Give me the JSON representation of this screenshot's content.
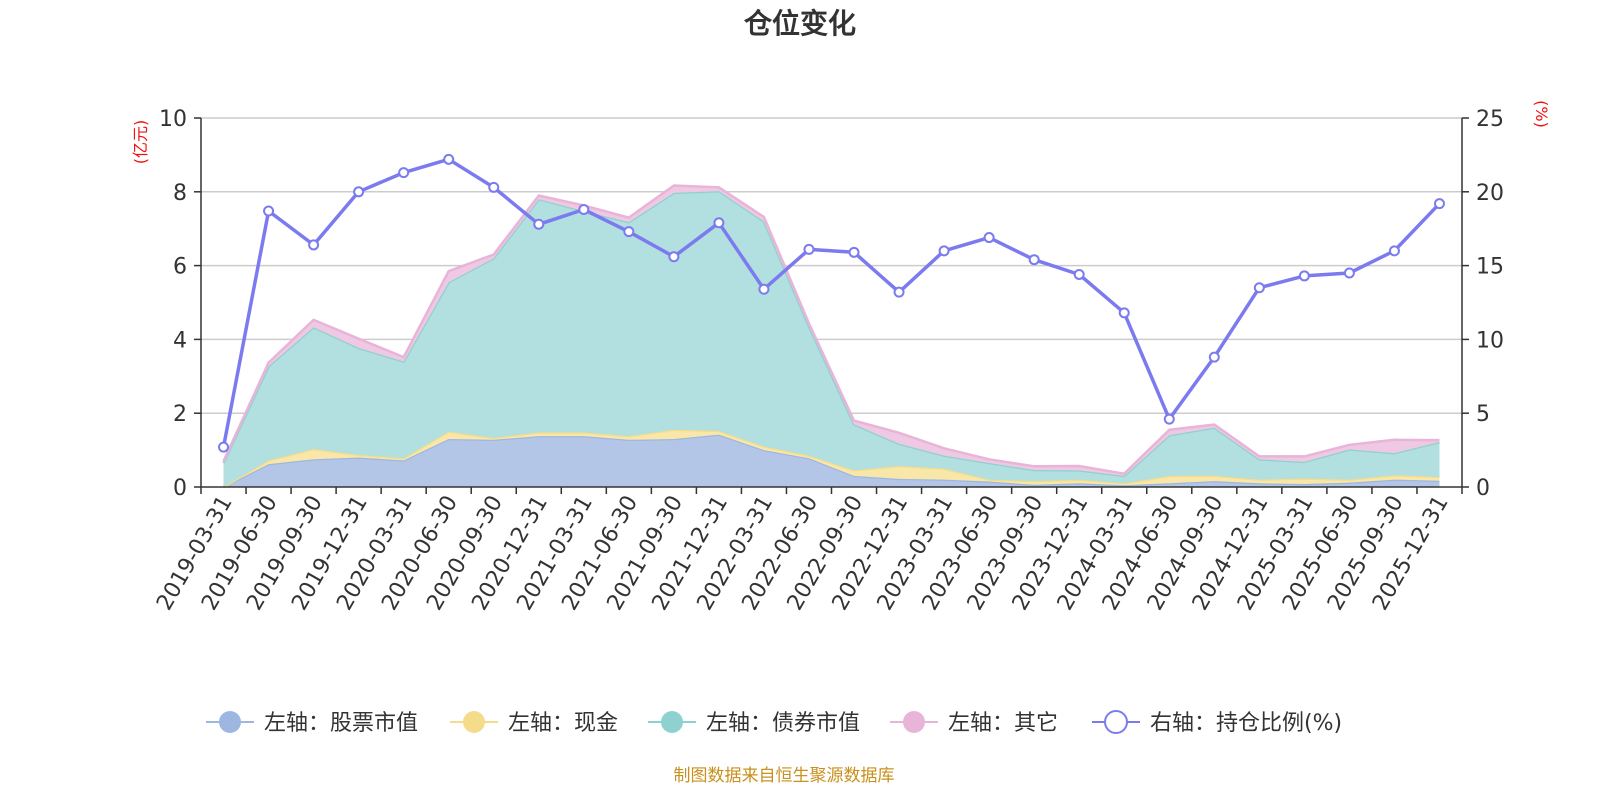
{
  "chart_data": {
    "type": "area+line",
    "title": "仓位变化",
    "left_axis": {
      "unit_label": "(亿元)",
      "ylim": [
        0,
        10
      ],
      "ticks": [
        "0",
        "2",
        "4",
        "6",
        "8",
        "10"
      ]
    },
    "right_axis": {
      "unit_label": "(%)",
      "ylim": [
        0,
        25
      ],
      "ticks": [
        "0",
        "5",
        "10",
        "15",
        "20",
        "25"
      ]
    },
    "categories": [
      "2019-03-31",
      "2019-06-30",
      "2019-09-30",
      "2019-12-31",
      "2020-03-31",
      "2020-06-30",
      "2020-09-30",
      "2020-12-31",
      "2021-03-31",
      "2021-06-30",
      "2021-09-30",
      "2021-12-31",
      "2022-03-31",
      "2022-06-30",
      "2022-09-30",
      "2022-12-31",
      "2023-03-31",
      "2023-06-30",
      "2023-09-30",
      "2023-12-31",
      "2024-03-31",
      "2024-06-30",
      "2024-09-30",
      "2024-12-31",
      "2025-03-31",
      "2025-06-30",
      "2025-09-30",
      "2025-12-31"
    ],
    "stacked_series": [
      {
        "name": "左轴：股票市值",
        "color": "#9eb7e0",
        "fill": "#b3c6e8",
        "values": [
          0.0,
          0.62,
          0.75,
          0.8,
          0.72,
          1.3,
          1.28,
          1.38,
          1.38,
          1.28,
          1.3,
          1.42,
          1.0,
          0.78,
          0.3,
          0.22,
          0.2,
          0.15,
          0.06,
          0.1,
          0.05,
          0.1,
          0.16,
          0.1,
          0.08,
          0.12,
          0.2,
          0.17
        ]
      },
      {
        "name": "左轴：现金",
        "color": "#f5dc8a",
        "fill": "#f8e7a8",
        "values": [
          0.0,
          0.1,
          0.28,
          0.07,
          0.06,
          0.2,
          0.05,
          0.1,
          0.1,
          0.1,
          0.25,
          0.1,
          0.1,
          0.07,
          0.15,
          0.35,
          0.3,
          0.05,
          0.1,
          0.1,
          0.05,
          0.2,
          0.15,
          0.1,
          0.15,
          0.08,
          0.12,
          0.1
        ]
      },
      {
        "name": "左轴：债券市值",
        "color": "#8fd1d0",
        "fill": "#b2dfdf",
        "values": [
          0.65,
          2.55,
          3.3,
          2.9,
          2.62,
          4.05,
          4.87,
          6.32,
          6.0,
          5.8,
          6.42,
          6.5,
          6.1,
          3.5,
          1.25,
          0.6,
          0.35,
          0.45,
          0.3,
          0.25,
          0.2,
          1.1,
          1.3,
          0.55,
          0.45,
          0.82,
          0.6,
          0.95
        ]
      },
      {
        "name": "左轴：其它",
        "color": "#e8b4d8",
        "fill": "#efc9e3",
        "values": [
          0.05,
          0.1,
          0.2,
          0.25,
          0.12,
          0.3,
          0.1,
          0.1,
          0.15,
          0.12,
          0.2,
          0.1,
          0.12,
          0.08,
          0.1,
          0.3,
          0.2,
          0.1,
          0.1,
          0.12,
          0.06,
          0.15,
          0.08,
          0.08,
          0.15,
          0.12,
          0.36,
          0.05
        ]
      }
    ],
    "line_series": {
      "name": "右轴：持仓比例(%)",
      "color": "#7b7bef",
      "values": [
        2.7,
        18.7,
        16.4,
        20.0,
        21.3,
        22.2,
        20.3,
        17.8,
        18.8,
        17.3,
        15.6,
        17.9,
        13.4,
        16.1,
        15.9,
        13.2,
        16.0,
        16.9,
        15.4,
        14.4,
        11.8,
        4.6,
        8.8,
        13.5,
        14.3,
        14.5,
        16.0,
        19.2
      ]
    },
    "legend_position": "bottom",
    "grid": true
  },
  "source_text": "制图数据来自恒生聚源数据库"
}
